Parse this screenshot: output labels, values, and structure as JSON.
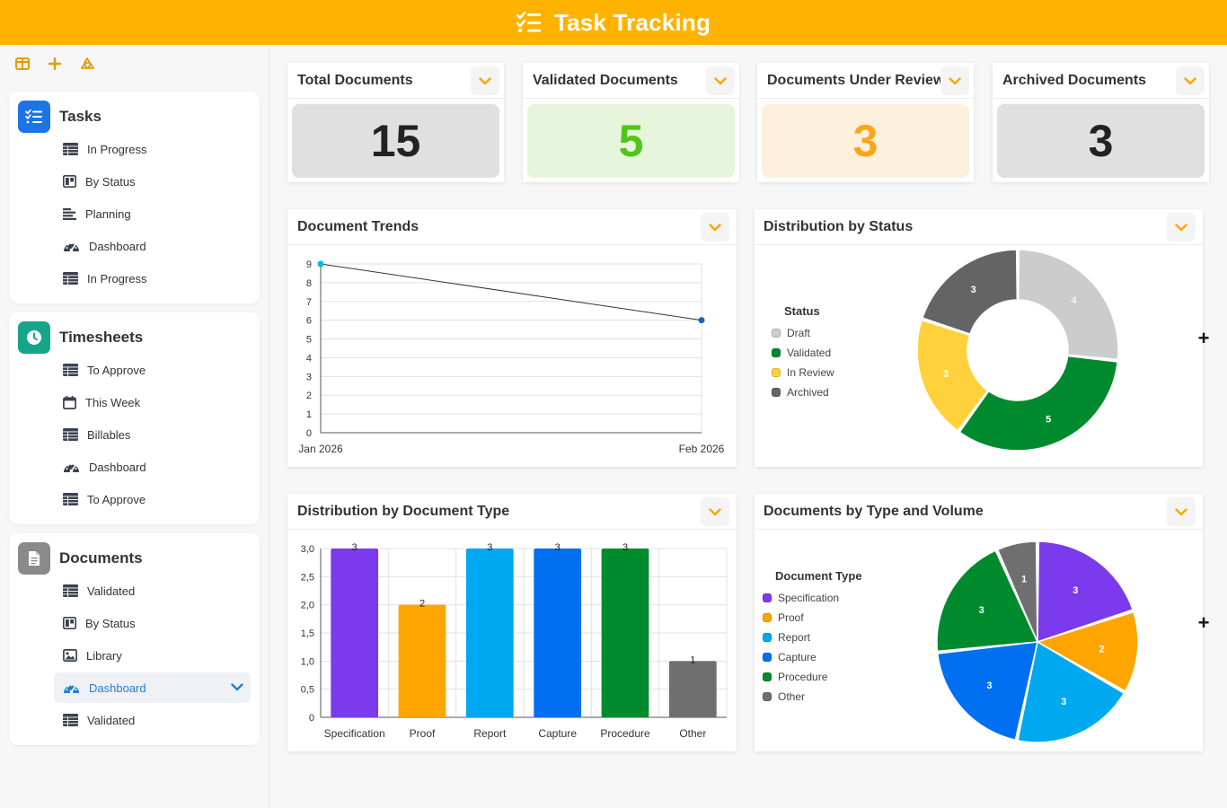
{
  "app": {
    "title": "Task Tracking"
  },
  "sidebar": {
    "toolbar": [
      {
        "icon": "layout-icon"
      },
      {
        "icon": "plus-icon"
      },
      {
        "icon": "recycle-icon"
      }
    ],
    "groups": [
      {
        "title": "Tasks",
        "icon": "task-list-icon",
        "color": "#1e73e8",
        "items": [
          {
            "label": "In Progress",
            "icon": "table-icon"
          },
          {
            "label": "By Status",
            "icon": "kanban-icon"
          },
          {
            "label": "Planning",
            "icon": "gantt-icon"
          },
          {
            "label": "Dashboard",
            "icon": "gauge-icon"
          },
          {
            "label": "In Progress",
            "icon": "table-icon"
          }
        ]
      },
      {
        "title": "Timesheets",
        "icon": "clock-icon",
        "color": "#17a589",
        "items": [
          {
            "label": "To Approve",
            "icon": "table-icon"
          },
          {
            "label": "This Week",
            "icon": "calendar-icon"
          },
          {
            "label": "Billables",
            "icon": "table-icon"
          },
          {
            "label": "Dashboard",
            "icon": "gauge-icon"
          },
          {
            "label": "To Approve",
            "icon": "table-icon"
          }
        ]
      },
      {
        "title": "Documents",
        "icon": "document-icon",
        "color": "#8a8a8a",
        "items": [
          {
            "label": "Validated",
            "icon": "table-icon"
          },
          {
            "label": "By Status",
            "icon": "kanban-icon"
          },
          {
            "label": "Library",
            "icon": "image-icon"
          },
          {
            "label": "Dashboard",
            "icon": "gauge-icon",
            "active": true
          },
          {
            "label": "Validated",
            "icon": "table-icon"
          }
        ]
      }
    ]
  },
  "kpis": [
    {
      "label": "Total Documents",
      "value": "15",
      "bg": "#e0e0e0",
      "fg": "#222222"
    },
    {
      "label": "Validated Documents",
      "value": "5",
      "bg": "#e6f5dc",
      "fg": "#52c41a"
    },
    {
      "label": "Documents Under Review",
      "value": "3",
      "bg": "#fbf0dc",
      "fg": "#faa61a"
    },
    {
      "label": "Archived Documents",
      "value": "3",
      "bg": "#e0e0e0",
      "fg": "#222222"
    }
  ],
  "panels": {
    "trends": {
      "title": "Document Trends"
    },
    "status": {
      "title": "Distribution by Status"
    },
    "doctype": {
      "title": "Distribution by Document Type"
    },
    "volume": {
      "title": "Documents by Type and Volume"
    }
  },
  "chart_data": [
    {
      "type": "line",
      "title": "Document Trends",
      "x": [
        "Jan 2026",
        "Feb 2026"
      ],
      "series": [
        {
          "values": [
            9,
            6
          ]
        }
      ],
      "ylim": [
        0,
        9
      ],
      "yticks": [
        "0",
        "1",
        "2",
        "3",
        "4",
        "5",
        "6",
        "7",
        "8",
        "9"
      ],
      "grid": true
    },
    {
      "type": "pie",
      "variant": "donut",
      "title": "Distribution by Status",
      "legend_title": "Status",
      "legend_position": "left",
      "labels": [
        "Draft",
        "Validated",
        "In Review",
        "Archived"
      ],
      "values": [
        4,
        5,
        3,
        3
      ],
      "colors": [
        "#cccccc",
        "#008a2e",
        "#ffd23c",
        "#646464"
      ]
    },
    {
      "type": "bar",
      "title": "Distribution by Document Type",
      "categories": [
        "Specification",
        "Proof",
        "Report",
        "Capture",
        "Procedure",
        "Other"
      ],
      "values": [
        3,
        2,
        3,
        3,
        3,
        1
      ],
      "colors": [
        "#7c3aed",
        "#ffa500",
        "#00a8f0",
        "#0070f0",
        "#008a2e",
        "#6f6f6f"
      ],
      "ylim": [
        0,
        3
      ],
      "yticks": [
        "0",
        "0,5",
        "1,0",
        "1,5",
        "2,0",
        "2,5",
        "3,0"
      ],
      "grid": true
    },
    {
      "type": "pie",
      "title": "Documents by Type and Volume",
      "legend_title": "Document Type",
      "legend_position": "left",
      "labels": [
        "Specification",
        "Proof",
        "Report",
        "Capture",
        "Procedure",
        "Other"
      ],
      "values": [
        3,
        2,
        3,
        3,
        3,
        1
      ],
      "colors": [
        "#7c3aed",
        "#ffa500",
        "#00a8f0",
        "#0070f0",
        "#008a2e",
        "#6f6f6f"
      ]
    }
  ]
}
